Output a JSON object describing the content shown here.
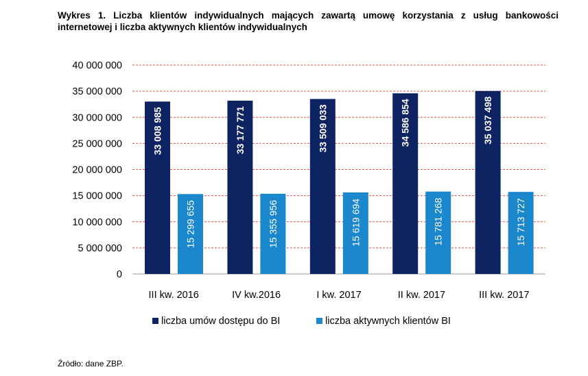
{
  "title": "Wykres 1. Liczba klientów indywidualnych mających zawartą umowę korzystania z usług bankowości internetowej i liczba aktywnych klientów indywidualnych",
  "source": "Źródło: dane ZBP.",
  "colors": {
    "series1": "#0d2362",
    "series2": "#1b87cc",
    "grid": "#e0534a",
    "axis": "#9a9a9a"
  },
  "chart_data": {
    "type": "bar",
    "categories": [
      "III kw. 2016",
      "IV kw.2016",
      "I kw. 2017",
      "II kw. 2017",
      "III kw. 2017"
    ],
    "series": [
      {
        "name": "liczba umów dostępu do BI",
        "values": [
          33008985,
          33177771,
          33509033,
          34586854,
          35037498
        ],
        "labels": [
          "33 008 985",
          "33 177 771",
          "33 509 033",
          "34 586 854",
          "35 037 498"
        ]
      },
      {
        "name": "liczba aktywnych klientów BI",
        "values": [
          15299655,
          15355956,
          15619694,
          15781268,
          15713727
        ],
        "labels": [
          "15 299 655",
          "15 355 956",
          "15 619 694",
          "15 781 268",
          "15 713 727"
        ]
      }
    ],
    "ylim": [
      0,
      40000000
    ],
    "yticks": [
      0,
      5000000,
      10000000,
      15000000,
      20000000,
      25000000,
      30000000,
      35000000,
      40000000
    ],
    "ytick_labels": [
      "0",
      "5 000 000",
      "10 000 000",
      "15 000 000",
      "20 000 000",
      "25 000 000",
      "30 000 000",
      "35 000 000",
      "40 000 000"
    ],
    "grid": true,
    "legend": "bottom",
    "xlabel": "",
    "ylabel": ""
  }
}
